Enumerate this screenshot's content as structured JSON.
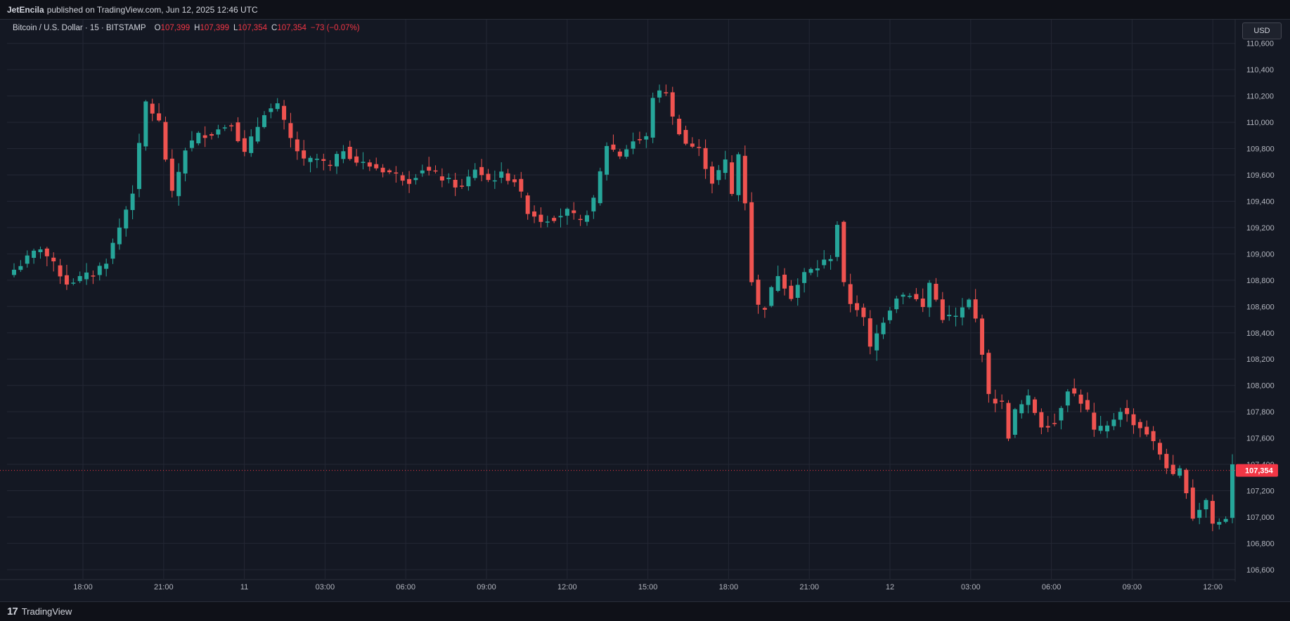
{
  "header": {
    "author": "JetEncila",
    "published_text": "published on TradingView.com, Jun 12, 2025 12:46 UTC"
  },
  "legend": {
    "symbol": "Bitcoin / U.S. Dollar · 15 · BITSTAMP",
    "open_label": "O",
    "open": "107,399",
    "high_label": "H",
    "high": "107,399",
    "low_label": "L",
    "low": "107,354",
    "close_label": "C",
    "close": "107,354",
    "change": "−73 (−0.07%)"
  },
  "currency_button": "USD",
  "footer": {
    "brand": "TradingView",
    "logo_mark": "17"
  },
  "colors": {
    "up": "#26a69a",
    "down": "#ef5350",
    "grid": "#232734",
    "background": "#141823",
    "price_label": "#f23645"
  },
  "chart_data": {
    "type": "candlestick",
    "symbol": "BTCUSD",
    "interval": "15",
    "exchange": "BITSTAMP",
    "y_ticks": [
      106600,
      106800,
      107000,
      107200,
      107400,
      107600,
      107800,
      108000,
      108200,
      108400,
      108600,
      108800,
      109000,
      109200,
      109400,
      109600,
      109800,
      110000,
      110200,
      110400,
      110600
    ],
    "x_tick_labels": [
      "18:00",
      "21:00",
      "11",
      "03:00",
      "06:00",
      "09:00",
      "12:00",
      "15:00",
      "18:00",
      "21:00",
      "12",
      "03:00",
      "06:00",
      "09:00",
      "12:00"
    ],
    "ylim": [
      106530,
      110780
    ],
    "last_price": 107354,
    "last_price_label": "107,354",
    "anchors": [
      [
        0,
        108880
      ],
      [
        4,
        109050
      ],
      [
        8,
        108780
      ],
      [
        12,
        108850
      ],
      [
        14,
        108950
      ],
      [
        16,
        109200
      ],
      [
        18,
        109480
      ],
      [
        20,
        110150
      ],
      [
        22,
        110000
      ],
      [
        24,
        109450
      ],
      [
        26,
        109800
      ],
      [
        28,
        109900
      ],
      [
        30,
        109920
      ],
      [
        33,
        110000
      ],
      [
        35,
        109760
      ],
      [
        38,
        110080
      ],
      [
        40,
        110120
      ],
      [
        42,
        109870
      ],
      [
        44,
        109700
      ],
      [
        46,
        109720
      ],
      [
        48,
        109660
      ],
      [
        50,
        109800
      ],
      [
        52,
        109700
      ],
      [
        56,
        109640
      ],
      [
        60,
        109560
      ],
      [
        62,
        109650
      ],
      [
        64,
        109600
      ],
      [
        68,
        109500
      ],
      [
        70,
        109650
      ],
      [
        72,
        109560
      ],
      [
        74,
        109600
      ],
      [
        76,
        109560
      ],
      [
        78,
        109330
      ],
      [
        80,
        109260
      ],
      [
        82,
        109280
      ],
      [
        84,
        109320
      ],
      [
        86,
        109240
      ],
      [
        88,
        109400
      ],
      [
        90,
        109830
      ],
      [
        92,
        109750
      ],
      [
        94,
        109860
      ],
      [
        96,
        109880
      ],
      [
        97,
        110200
      ],
      [
        99,
        110240
      ],
      [
        100,
        110030
      ],
      [
        102,
        109840
      ],
      [
        104,
        109790
      ],
      [
        106,
        109550
      ],
      [
        108,
        109700
      ],
      [
        109,
        109450
      ],
      [
        110,
        109760
      ],
      [
        111,
        109400
      ],
      [
        112,
        108800
      ],
      [
        113,
        108600
      ],
      [
        114,
        108600
      ],
      [
        116,
        108850
      ],
      [
        118,
        108680
      ],
      [
        120,
        108850
      ],
      [
        122,
        108900
      ],
      [
        124,
        108980
      ],
      [
        125,
        109230
      ],
      [
        126,
        108760
      ],
      [
        127,
        108630
      ],
      [
        128,
        108590
      ],
      [
        129,
        108500
      ],
      [
        130,
        108280
      ],
      [
        132,
        108500
      ],
      [
        134,
        108680
      ],
      [
        136,
        108700
      ],
      [
        137,
        108650
      ],
      [
        138,
        108590
      ],
      [
        139,
        108780
      ],
      [
        141,
        108520
      ],
      [
        143,
        108520
      ],
      [
        145,
        108640
      ],
      [
        146,
        108500
      ],
      [
        147,
        108260
      ],
      [
        148,
        107910
      ],
      [
        150,
        107860
      ],
      [
        151,
        107620
      ],
      [
        152,
        107800
      ],
      [
        154,
        107900
      ],
      [
        156,
        107700
      ],
      [
        158,
        107720
      ],
      [
        160,
        107980
      ],
      [
        162,
        107880
      ],
      [
        163,
        107800
      ],
      [
        164,
        107650
      ],
      [
        166,
        107680
      ],
      [
        168,
        107820
      ],
      [
        170,
        107720
      ],
      [
        172,
        107640
      ],
      [
        174,
        107480
      ],
      [
        176,
        107300
      ],
      [
        177,
        107350
      ],
      [
        178,
        107210
      ],
      [
        179,
        107000
      ],
      [
        181,
        107130
      ],
      [
        182,
        106950
      ],
      [
        183,
        106960
      ],
      [
        184,
        107000
      ],
      [
        185,
        107400
      ]
    ]
  }
}
